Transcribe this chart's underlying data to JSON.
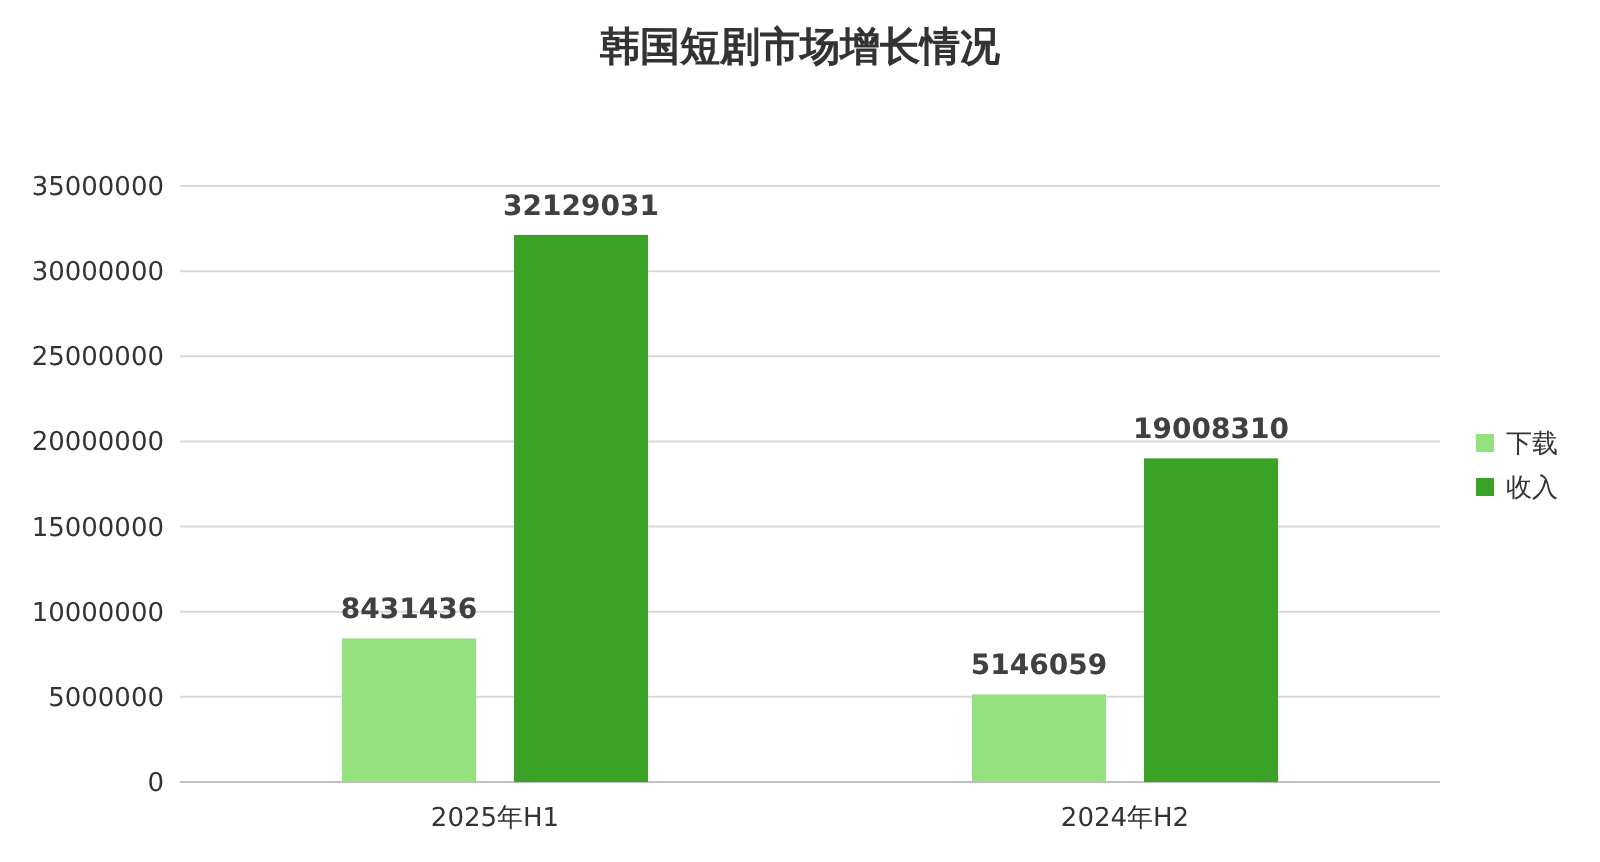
{
  "chart_data": {
    "type": "bar",
    "title": "韩国短剧市场增长情况",
    "categories": [
      "2025年H1",
      "2024年H2"
    ],
    "series": [
      {
        "name": "下载",
        "color": "#95e07f",
        "values": [
          8431436,
          5146059
        ]
      },
      {
        "name": "收入",
        "color": "#3aa325",
        "values": [
          32129031,
          19008310
        ]
      }
    ],
    "ylim": [
      0,
      35000000
    ],
    "yticks": [
      0,
      5000000,
      10000000,
      15000000,
      20000000,
      25000000,
      30000000,
      35000000
    ],
    "grid": "y",
    "legend": "right",
    "data_labels": true
  }
}
